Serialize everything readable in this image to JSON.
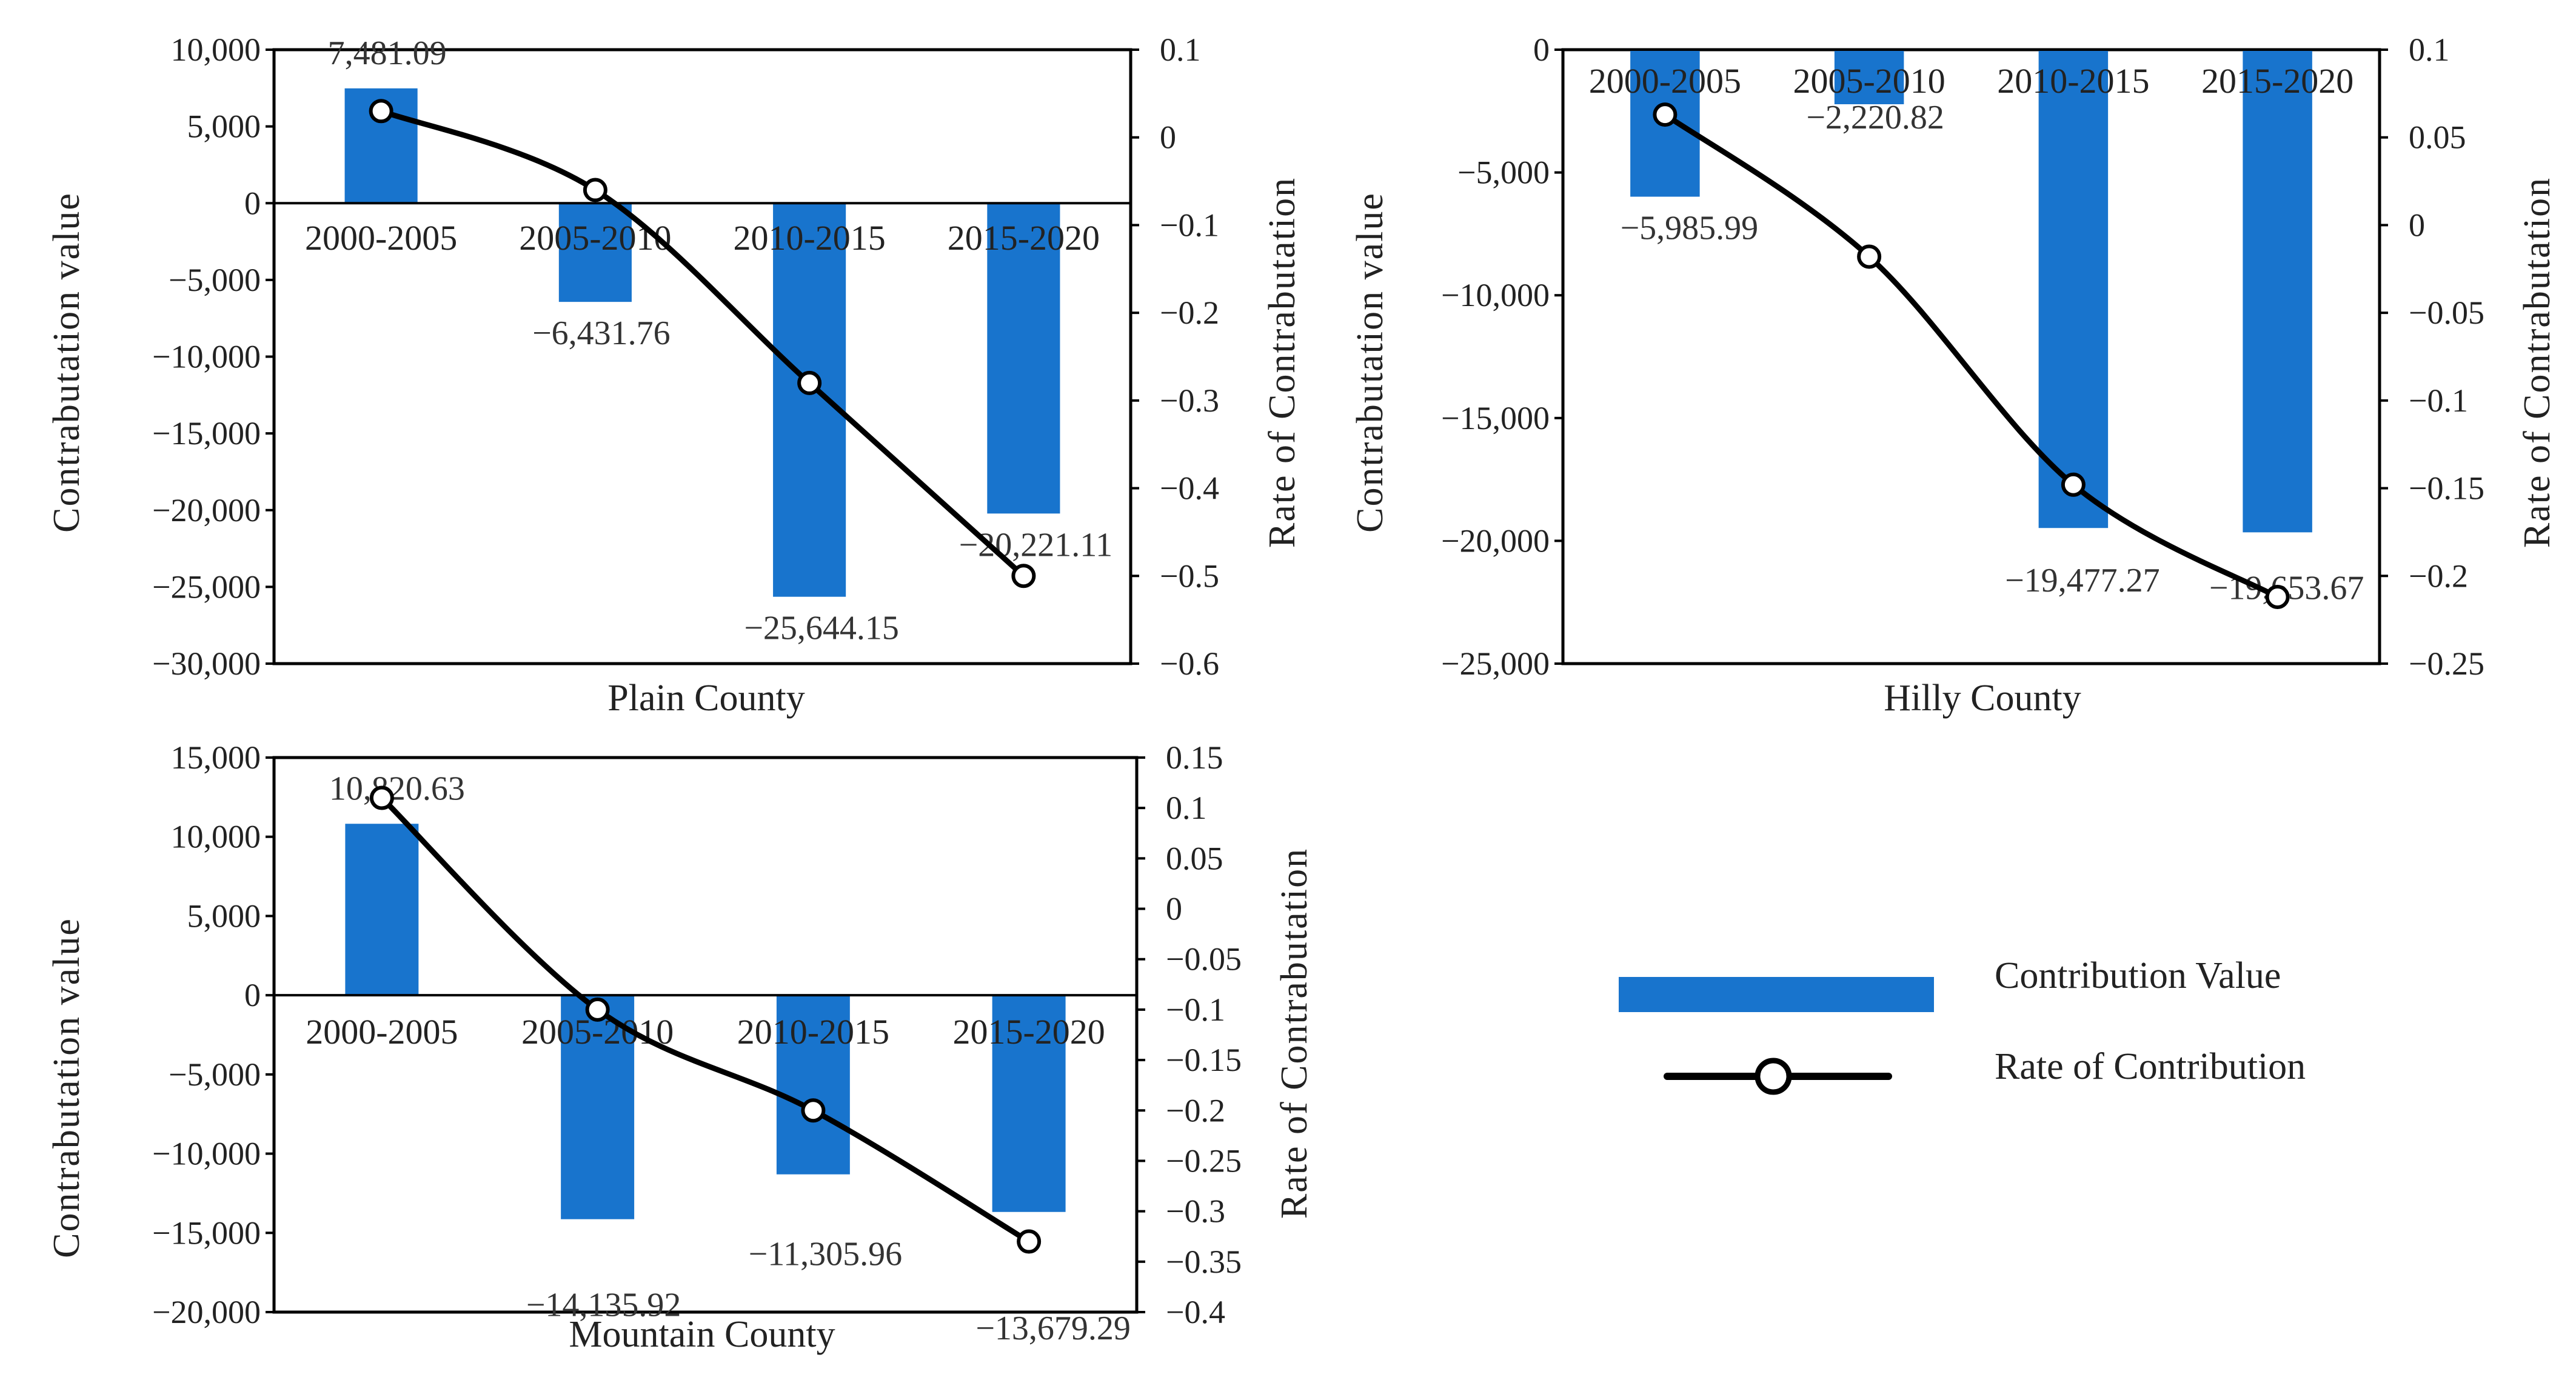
{
  "colors": {
    "bar": "#1874CD",
    "line": "#000000",
    "marker_fill": "#ffffff",
    "frame": "#000000"
  },
  "legend": {
    "bar_label": "Contribution Value",
    "line_label": "Rate of Contribution"
  },
  "chart_data": [
    {
      "type": "bar",
      "title": "Plain  County",
      "categories": [
        "2000-2005",
        "2005-2010",
        "2010-2015",
        "2015-2020"
      ],
      "ylabel": "Contrabutation  value",
      "y2label": "Rate  of  Contrabutation",
      "ylim": [
        -30000,
        10000
      ],
      "yticks": [
        10000,
        5000,
        0,
        -5000,
        -10000,
        -15000,
        -20000,
        -25000,
        -30000
      ],
      "ytick_labels": [
        "10,000",
        "5,000",
        "0",
        "−5,000",
        "−10,000",
        "−15,000",
        "−20,000",
        "−25,000",
        "−30,000"
      ],
      "y2lim": [
        -0.6,
        0.1
      ],
      "y2ticks": [
        0.1,
        0,
        -0.1,
        -0.2,
        -0.3,
        -0.4,
        -0.5,
        -0.6
      ],
      "y2tick_labels": [
        "0.1",
        "0",
        "−0.1",
        "−0.2",
        "−0.3",
        "−0.4",
        "−0.5",
        "−0.6"
      ],
      "series": [
        {
          "name": "Contribution Value",
          "kind": "bar",
          "values": [
            7481.09,
            -6431.76,
            -25644.15,
            -20221.11
          ]
        },
        {
          "name": "Rate of Contribution",
          "kind": "line",
          "values": [
            0.03,
            -0.06,
            -0.28,
            -0.5
          ]
        }
      ],
      "data_labels": [
        "7,481.09",
        "−6,431.76",
        "−25,644.15",
        "−20,221.11"
      ]
    },
    {
      "type": "bar",
      "title": "Hilly County",
      "categories": [
        "2000-2005",
        "2005-2010",
        "2010-2015",
        "2015-2020"
      ],
      "ylabel": "Contrabutation  value",
      "y2label": "Rate  of  Contrabutation",
      "ylim": [
        -25000,
        0
      ],
      "yticks": [
        0,
        -5000,
        -10000,
        -15000,
        -20000,
        -25000
      ],
      "ytick_labels": [
        "0",
        "−5,000",
        "−10,000",
        "−15,000",
        "−20,000",
        "−25,000"
      ],
      "y2lim": [
        -0.25,
        0.1
      ],
      "y2ticks": [
        0.1,
        0.05,
        0,
        -0.05,
        -0.1,
        -0.15,
        -0.2,
        -0.25
      ],
      "y2tick_labels": [
        "0.1",
        "0.05",
        "0",
        "−0.05",
        "−0.1",
        "−0.15",
        "−0.2",
        "−0.25"
      ],
      "series": [
        {
          "name": "Contribution Value",
          "kind": "bar",
          "values": [
            -5985.99,
            -2220.82,
            -19477.27,
            -19653.67
          ]
        },
        {
          "name": "Rate of Contribution",
          "kind": "line",
          "values": [
            0.063,
            -0.018,
            -0.148,
            -0.212
          ]
        }
      ],
      "data_labels": [
        "−5,985.99",
        "−2,220.82",
        "−19,477.27",
        "−19,653.67"
      ]
    },
    {
      "type": "bar",
      "title": "Mountain County",
      "categories": [
        "2000-2005",
        "2005-2010",
        "2010-2015",
        "2015-2020"
      ],
      "ylabel": "Contrabutation  value",
      "y2label": "Rate  of  Contrabutation",
      "ylim": [
        -20000,
        15000
      ],
      "yticks": [
        15000,
        10000,
        5000,
        0,
        -5000,
        -10000,
        -15000,
        -20000
      ],
      "ytick_labels": [
        "15,000",
        "10,000",
        "5,000",
        "0",
        "−5,000",
        "−10,000",
        "−15,000",
        "−20,000"
      ],
      "y2lim": [
        -0.4,
        0.15
      ],
      "y2ticks": [
        0.15,
        0.1,
        0.05,
        0,
        -0.05,
        -0.1,
        -0.15,
        -0.2,
        -0.25,
        -0.3,
        -0.35,
        -0.4
      ],
      "y2tick_labels": [
        "0.15",
        "0.1",
        "0.05",
        "0",
        "−0.05",
        "−0.1",
        "−0.15",
        "−0.2",
        "−0.25",
        "−0.3",
        "−0.35",
        "−0.4"
      ],
      "series": [
        {
          "name": "Contribution Value",
          "kind": "bar",
          "values": [
            10820.63,
            -14135.92,
            -11305.96,
            -13679.29
          ]
        },
        {
          "name": "Rate of Contribution",
          "kind": "line",
          "values": [
            0.11,
            -0.1,
            -0.2,
            -0.33
          ]
        }
      ],
      "data_labels": [
        "10,820.63",
        "−14,135.92",
        "−11,305.96",
        "−13,679.29"
      ]
    }
  ]
}
